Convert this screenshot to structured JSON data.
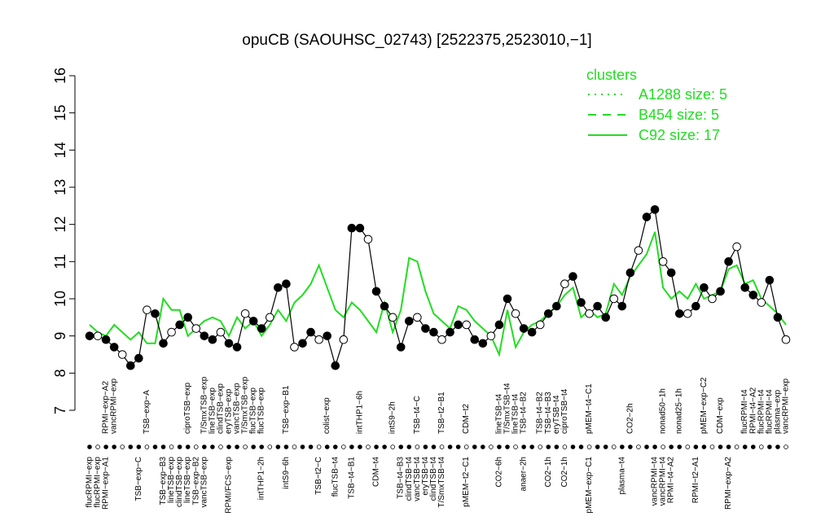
{
  "chart_data": {
    "type": "line",
    "title": "opuCB (SAOUHSC_02743) [2522375,2523010,−1]",
    "ylim": [
      7,
      16
    ],
    "yticks": [
      7,
      8,
      9,
      10,
      11,
      12,
      13,
      14,
      15,
      16
    ],
    "x_range": [
      1,
      86
    ],
    "legend": {
      "title": "clusters",
      "position": "top-right",
      "color": "#22dd22",
      "entries": [
        {
          "label": "A1288 size: 5",
          "style": "dotted"
        },
        {
          "label": "B454 size: 5",
          "style": "dashed"
        },
        {
          "label": "C92 size: 17",
          "style": "solid"
        }
      ]
    },
    "top_labels": [
      {
        "x": 3,
        "text": "RPMI−exp−A2"
      },
      {
        "x": 4,
        "text": "vancRPMI−exp"
      },
      {
        "x": 8,
        "text": "TSB−exp−A"
      },
      {
        "x": 13,
        "text": "ciproTSB−exp"
      },
      {
        "x": 15,
        "text": "T/SmxTSB−exp"
      },
      {
        "x": 16,
        "text": "lineTSB−exp"
      },
      {
        "x": 17,
        "text": "clindTSB−exp"
      },
      {
        "x": 18,
        "text": "eryTSB−exp"
      },
      {
        "x": 19,
        "text": "vancTSB−exp"
      },
      {
        "x": 20,
        "text": "T/SmxTSB−exp"
      },
      {
        "x": 21,
        "text": "flucTSB−exp"
      },
      {
        "x": 22,
        "text": "flucTSB−exp"
      },
      {
        "x": 25,
        "text": "TSB−exp−B1"
      },
      {
        "x": 30,
        "text": "colist−exp"
      },
      {
        "x": 34,
        "text": "intTHP1−6h"
      },
      {
        "x": 38,
        "text": "intS9−2h"
      },
      {
        "x": 41,
        "text": "TSB−t4−C"
      },
      {
        "x": 44,
        "text": "TSB−t2−B1"
      },
      {
        "x": 47,
        "text": "CDM−t2"
      },
      {
        "x": 51,
        "text": "lineTSB−t4"
      },
      {
        "x": 52,
        "text": "T/SmxTSB−t4"
      },
      {
        "x": 53,
        "text": "lineTSB−t4"
      },
      {
        "x": 54,
        "text": "TSB−t4−B2"
      },
      {
        "x": 56,
        "text": "TSB−t4−B2"
      },
      {
        "x": 57,
        "text": "TSB−t4−B3"
      },
      {
        "x": 58,
        "text": "eryTSB−t4"
      },
      {
        "x": 59,
        "text": "ciproTSB−t4"
      },
      {
        "x": 62,
        "text": "pMEM−t4−C1"
      },
      {
        "x": 67,
        "text": "CO2−2h"
      },
      {
        "x": 71,
        "text": "nonad50−1h"
      },
      {
        "x": 73,
        "text": "nonad25−1h"
      },
      {
        "x": 76,
        "text": "pMEM−exp−C2"
      },
      {
        "x": 78,
        "text": "CDM−exp"
      },
      {
        "x": 81,
        "text": "flucRPMI−t4"
      },
      {
        "x": 82,
        "text": "RPMI−t4−A2"
      },
      {
        "x": 83,
        "text": "flucRPMI−t4"
      },
      {
        "x": 84,
        "text": "flucRPMI−t4"
      },
      {
        "x": 85,
        "text": "plasma−exp"
      },
      {
        "x": 86,
        "text": "vancRPMI−exp"
      }
    ],
    "bottom_labels": [
      {
        "x": 1,
        "text": "flucRPMI−exp"
      },
      {
        "x": 2,
        "text": "flucRPMI−exp"
      },
      {
        "x": 3,
        "text": "RPMI−exp−A1"
      },
      {
        "x": 7,
        "text": "TSB−exp−C"
      },
      {
        "x": 10,
        "text": "TSB−exp−B3"
      },
      {
        "x": 11,
        "text": "lineTSB−exp"
      },
      {
        "x": 12,
        "text": "clindTSB−exp"
      },
      {
        "x": 13,
        "text": "lineTSB−exp"
      },
      {
        "x": 14,
        "text": "TSB−exp−B2"
      },
      {
        "x": 15,
        "text": "vancTSB−exp"
      },
      {
        "x": 18,
        "text": "RPMI/FCS−exp"
      },
      {
        "x": 22,
        "text": "intTHP1−2h"
      },
      {
        "x": 25,
        "text": "intS9−6h"
      },
      {
        "x": 29,
        "text": "TSB−t2−C"
      },
      {
        "x": 31,
        "text": "flucTSB−t4"
      },
      {
        "x": 33,
        "text": "TSB−t4−B1"
      },
      {
        "x": 36,
        "text": "CDM−t4"
      },
      {
        "x": 39,
        "text": "TSB−t4−B3"
      },
      {
        "x": 40,
        "text": "clindTSB−t4"
      },
      {
        "x": 41,
        "text": "vancTSB−t4"
      },
      {
        "x": 42,
        "text": "eryTSB−t4"
      },
      {
        "x": 43,
        "text": "clindTSB−t4"
      },
      {
        "x": 44,
        "text": "T/SmxTSB−t4"
      },
      {
        "x": 47,
        "text": "pMEM−t2−C1"
      },
      {
        "x": 51,
        "text": "CO2−6h"
      },
      {
        "x": 54,
        "text": "anaer−2h"
      },
      {
        "x": 57,
        "text": "CO2−1h"
      },
      {
        "x": 59,
        "text": "CO2−1h"
      },
      {
        "x": 62,
        "text": "pMEM−exp−C1"
      },
      {
        "x": 66,
        "text": "plasma−t4"
      },
      {
        "x": 70,
        "text": "vancRPMI−t4"
      },
      {
        "x": 71,
        "text": "vancRPMI−t4"
      },
      {
        "x": 72,
        "text": "RPMI−t4−A2"
      },
      {
        "x": 75,
        "text": "RPMI−t2−A1"
      },
      {
        "x": 79,
        "text": "RPMI−exp−A2"
      }
    ],
    "series": [
      {
        "style": "solid",
        "color": "#22dd22",
        "x": [
          1,
          2,
          3,
          4,
          5,
          6,
          7,
          8,
          9,
          10,
          11,
          12,
          13,
          14,
          15,
          16,
          17,
          18,
          19,
          20,
          21,
          22,
          23,
          24,
          25,
          26,
          27,
          28,
          29,
          30,
          31,
          32,
          33,
          34,
          35,
          36,
          37,
          38,
          39,
          40,
          41,
          42,
          43,
          44,
          45,
          46,
          47,
          48,
          49,
          50,
          51,
          52,
          53,
          54,
          55,
          56,
          57,
          58,
          59,
          60,
          61,
          62,
          63,
          64,
          65,
          66,
          67,
          68,
          69,
          70,
          71,
          72,
          73,
          74,
          75,
          76,
          77,
          78,
          79,
          80,
          81,
          82,
          83,
          84,
          85,
          86
        ],
        "y": [
          9.3,
          9.1,
          9.0,
          9.3,
          9.1,
          8.9,
          9.1,
          8.8,
          8.8,
          10.0,
          9.7,
          9.7,
          9.0,
          9.2,
          9.4,
          9.5,
          9.4,
          9.0,
          9.5,
          9.2,
          9.4,
          9.0,
          9.3,
          9.7,
          9.4,
          9.9,
          10.1,
          10.4,
          10.9,
          10.3,
          9.7,
          9.5,
          9.9,
          9.7,
          9.4,
          9.1,
          9.9,
          9.1,
          9.7,
          11.1,
          11.0,
          10.2,
          9.6,
          9.4,
          9.2,
          9.8,
          9.7,
          9.4,
          9.2,
          9.0,
          8.5,
          9.7,
          8.7,
          9.1,
          9.3,
          9.4,
          9.6,
          9.8,
          10.1,
          10.3,
          9.5,
          9.7,
          9.5,
          9.6,
          10.4,
          10.1,
          10.6,
          10.9,
          11.2,
          11.8,
          10.3,
          10.0,
          10.2,
          10.0,
          10.4,
          10.0,
          10.1,
          10.2,
          10.8,
          10.9,
          10.4,
          10.5,
          10.0,
          9.8,
          9.6,
          9.3
        ]
      },
      {
        "style": "markers",
        "color": "#000000",
        "x": [
          1,
          2,
          3,
          4,
          5,
          6,
          7,
          8,
          9,
          10,
          11,
          12,
          13,
          14,
          15,
          16,
          17,
          18,
          19,
          20,
          21,
          22,
          23,
          24,
          25,
          26,
          27,
          28,
          29,
          30,
          31,
          32,
          33,
          34,
          35,
          36,
          37,
          38,
          39,
          40,
          41,
          42,
          43,
          44,
          45,
          46,
          47,
          48,
          49,
          50,
          51,
          52,
          53,
          54,
          55,
          56,
          57,
          58,
          59,
          60,
          61,
          62,
          63,
          64,
          65,
          66,
          67,
          68,
          69,
          70,
          71,
          72,
          73,
          74,
          75,
          76,
          77,
          78,
          79,
          80,
          81,
          82,
          83,
          84,
          85,
          86
        ],
        "y": [
          9.0,
          9.0,
          8.9,
          8.7,
          8.5,
          8.2,
          8.4,
          9.7,
          9.6,
          8.8,
          9.1,
          9.3,
          9.5,
          9.2,
          9.0,
          8.9,
          9.1,
          8.8,
          8.7,
          9.6,
          9.4,
          9.2,
          9.5,
          10.3,
          10.4,
          8.7,
          8.8,
          9.1,
          8.9,
          9.0,
          8.2,
          8.9,
          11.9,
          11.9,
          11.6,
          10.2,
          9.8,
          9.5,
          8.7,
          9.4,
          9.5,
          9.2,
          9.1,
          8.9,
          9.1,
          9.3,
          9.3,
          8.9,
          8.8,
          9.0,
          9.3,
          10.0,
          9.6,
          9.2,
          9.1,
          9.3,
          9.6,
          9.8,
          10.4,
          10.6,
          9.9,
          9.6,
          9.8,
          9.5,
          10.0,
          9.8,
          10.7,
          11.3,
          12.2,
          12.4,
          11.0,
          10.7,
          9.6,
          9.6,
          9.8,
          10.3,
          10.0,
          10.2,
          11.0,
          11.4,
          10.3,
          10.1,
          9.9,
          10.5,
          9.5,
          8.9
        ]
      }
    ]
  }
}
